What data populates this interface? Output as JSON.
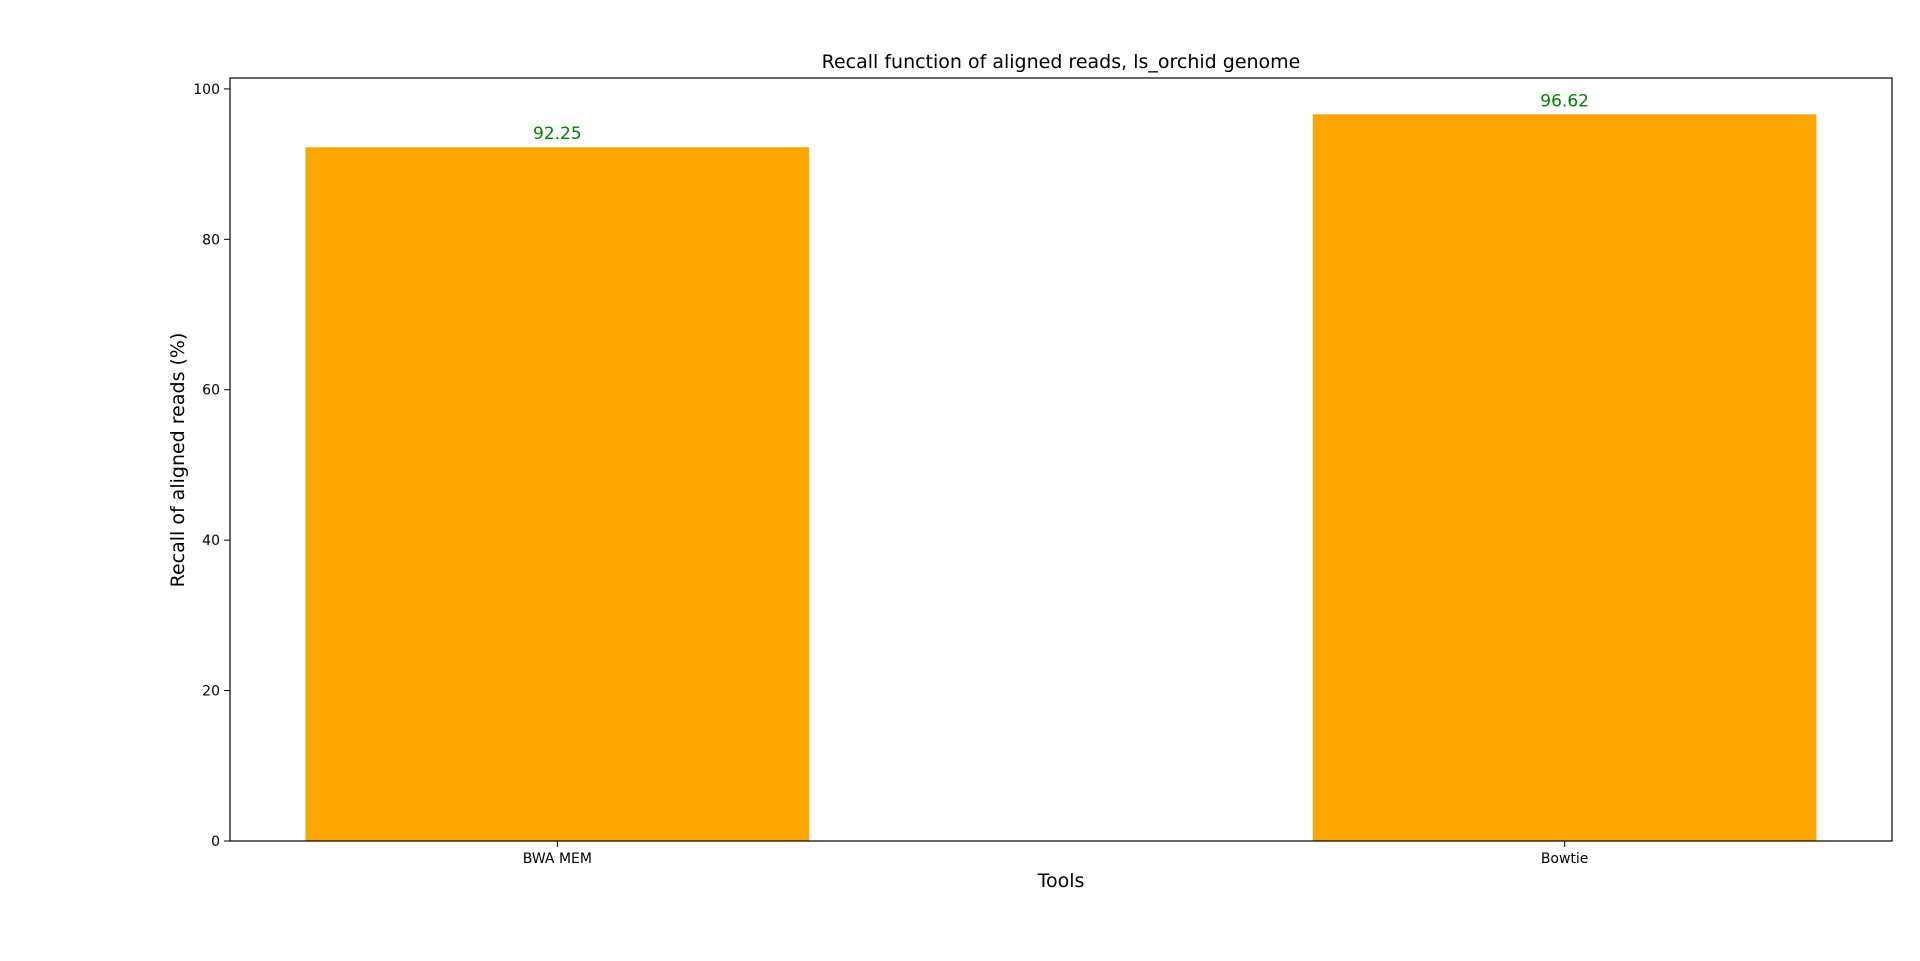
{
  "chart_data": {
    "type": "bar",
    "title": "Recall function of aligned reads, ls_orchid genome",
    "xlabel": "Tools",
    "ylabel": "Recall of aligned reads (%)",
    "categories": [
      "BWA MEM",
      "Bowtie"
    ],
    "values": [
      92.25,
      96.62
    ],
    "data_labels": [
      "92.25",
      "96.62"
    ],
    "ylim": [
      0,
      101.45
    ],
    "yticks": [
      0,
      20,
      40,
      60,
      80,
      100
    ],
    "grid": false,
    "legend": "none",
    "bar_color": "#ffa500",
    "label_color": "#008000"
  }
}
